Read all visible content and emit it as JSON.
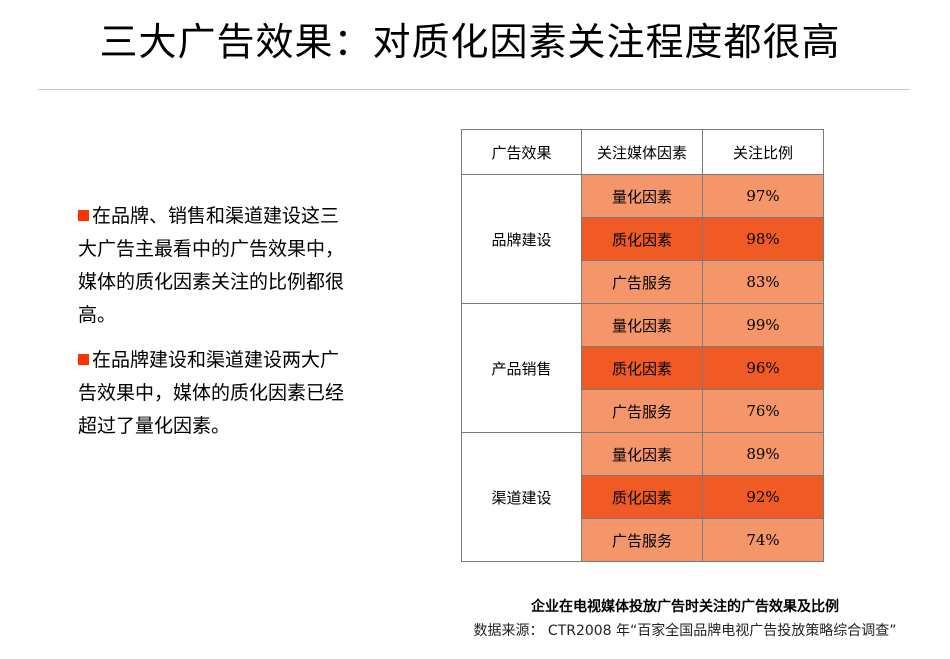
{
  "title": "三大广告效果：对质化因素关注程度都很高",
  "bullets": [
    "在品牌、销售和渠道建设这三大广告主最看中的广告效果中，媒体的质化因素关注的比例都很高。",
    "在品牌建设和渠道建设两大广告效果中，媒体的质化因素已经超过了量化因素。"
  ],
  "colors": {
    "accent": "#ff3300",
    "cell_light": "#f4956a",
    "cell_dark": "#f05a24"
  },
  "table": {
    "headers": [
      "广告效果",
      "关注媒体因素",
      "关注比例"
    ],
    "groups": [
      {
        "name": "品牌建设",
        "rows": [
          {
            "factor": "量化因素",
            "value": "97%"
          },
          {
            "factor": "质化因素",
            "value": "98%"
          },
          {
            "factor": "广告服务",
            "value": "83%"
          }
        ]
      },
      {
        "name": "产品销售",
        "rows": [
          {
            "factor": "量化因素",
            "value": "99%"
          },
          {
            "factor": "质化因素",
            "value": "96%"
          },
          {
            "factor": "广告服务",
            "value": "76%"
          }
        ]
      },
      {
        "name": "渠道建设",
        "rows": [
          {
            "factor": "量化因素",
            "value": "89%"
          },
          {
            "factor": "质化因素",
            "value": "92%"
          },
          {
            "factor": "广告服务",
            "value": "74%"
          }
        ]
      }
    ]
  },
  "caption": "企业在电视媒体投放广告时关注的广告效果及比例",
  "source": "数据来源： CTR2008 年“百家全国品牌电视广告投放策略综合调查”"
}
